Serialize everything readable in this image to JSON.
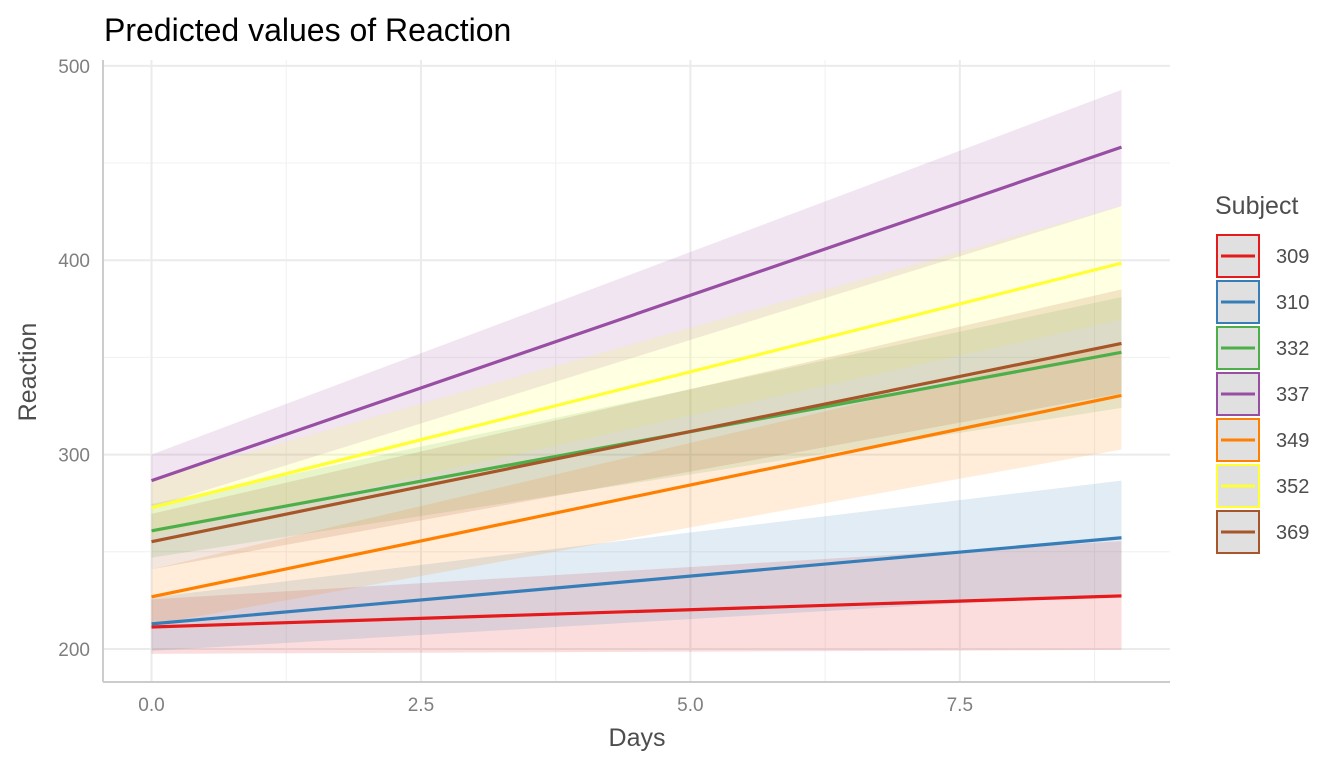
{
  "chart_data": {
    "type": "line",
    "title": "Predicted values of Reaction",
    "xlabel": "Days",
    "ylabel": "Reaction",
    "xlim": [
      -0.45,
      9.45
    ],
    "ylim": [
      183,
      503
    ],
    "x_ticks": [
      0,
      2.5,
      5,
      7.5
    ],
    "x_tick_labels": [
      "0.0",
      "2.5",
      "5.0",
      "7.5"
    ],
    "x_minor_ticks": [
      1.25,
      3.75,
      6.25,
      8.75
    ],
    "y_ticks": [
      200,
      300,
      400,
      500
    ],
    "y_tick_labels": [
      "200",
      "300",
      "400",
      "500"
    ],
    "y_minor_ticks": [
      250,
      350,
      450
    ],
    "grid": true,
    "legend": {
      "title": "Subject",
      "position": "right"
    },
    "x": [
      0,
      9
    ],
    "series": [
      {
        "name": "309",
        "color": "#E41A1C",
        "values": [
          211.3,
          227.3
        ],
        "ci_low": [
          197.5,
          199.5
        ],
        "ci_high": [
          225.5,
          255.5
        ]
      },
      {
        "name": "310",
        "color": "#377EB8",
        "values": [
          212.9,
          257.2
        ],
        "ci_low": [
          199.0,
          228.5
        ],
        "ci_high": [
          226.5,
          286.6
        ]
      },
      {
        "name": "332",
        "color": "#4DAF4A",
        "values": [
          260.8,
          352.6
        ],
        "ci_low": [
          247.0,
          324.0
        ],
        "ci_high": [
          274.5,
          381.0
        ]
      },
      {
        "name": "337",
        "color": "#984EA3",
        "values": [
          286.6,
          458.2
        ],
        "ci_low": [
          273.0,
          427.8
        ],
        "ci_high": [
          300.0,
          487.6
        ]
      },
      {
        "name": "349",
        "color": "#FF7F00",
        "values": [
          226.8,
          330.4
        ],
        "ci_low": [
          212.5,
          302.6
        ],
        "ci_high": [
          241.0,
          358.0
        ]
      },
      {
        "name": "352",
        "color": "#FFFF33",
        "values": [
          272.7,
          398.5
        ],
        "ci_low": [
          258.5,
          369.5
        ],
        "ci_high": [
          287.0,
          427.8
        ]
      },
      {
        "name": "369",
        "color": "#A65628",
        "values": [
          255.2,
          357.2
        ],
        "ci_low": [
          241.0,
          331.5
        ],
        "ci_high": [
          269.5,
          385.0
        ]
      }
    ]
  }
}
